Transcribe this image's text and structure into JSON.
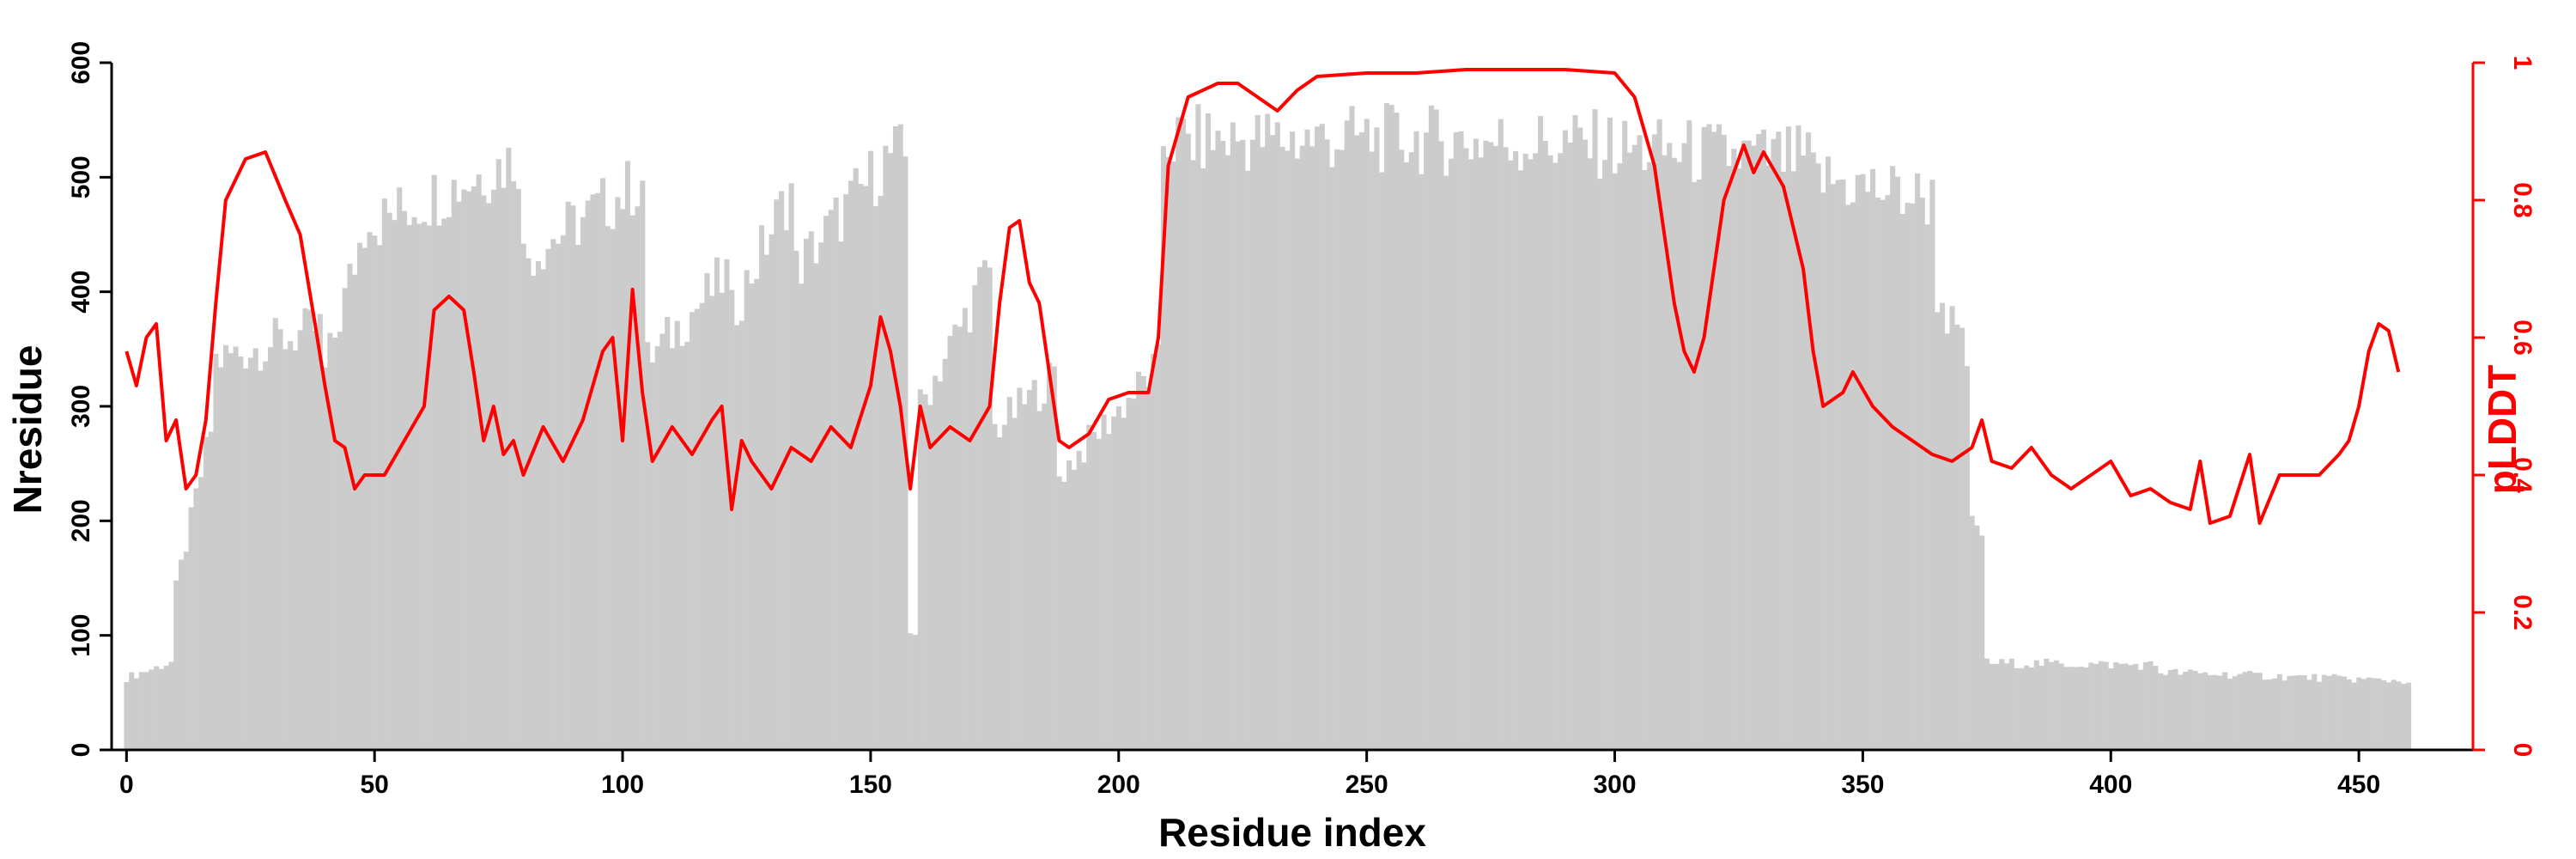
{
  "chart_data": {
    "type": "bar+line",
    "xlabel": "Residue index",
    "ylabel_left": "Nresidue",
    "ylabel_right": "pLDDT",
    "xlim": [
      -3,
      473
    ],
    "ylim_left": [
      0,
      600
    ],
    "ylim_right": [
      0,
      1
    ],
    "x_ticks": [
      "0",
      "50",
      "100",
      "150",
      "200",
      "250",
      "300",
      "350",
      "400",
      "450"
    ],
    "y_ticks_left": [
      "0",
      "100",
      "200",
      "300",
      "400",
      "500",
      "600"
    ],
    "y_ticks_right": [
      "0",
      "0.2",
      "0.4",
      "0.6",
      "0.8",
      "1"
    ],
    "colors": {
      "bars": "#cccccc",
      "line": "#ff0000",
      "axis_left": "#000000",
      "axis_right": "#ff0000"
    },
    "bar_series": {
      "name": "Nresidue",
      "segments": [
        {
          "x": [
            0,
            10
          ],
          "y": [
            63,
            78
          ]
        },
        {
          "x": [
            10,
            18
          ],
          "y": [
            140,
            300
          ]
        },
        {
          "x": [
            18,
            40
          ],
          "y": [
            340,
            370
          ]
        },
        {
          "x": [
            40,
            50
          ],
          "y": [
            330,
            490
          ]
        },
        {
          "x": [
            50,
            80
          ],
          "y": [
            460,
            520
          ]
        },
        {
          "x": [
            80,
            105
          ],
          "y": [
            430,
            500
          ]
        },
        {
          "x": [
            105,
            122
          ],
          "y": [
            340,
            420
          ]
        },
        {
          "x": [
            122,
            135
          ],
          "y": [
            380,
            500
          ]
        },
        {
          "x": [
            135,
            155
          ],
          "y": [
            420,
            525
          ]
        },
        {
          "x": [
            155,
            158
          ],
          "y": [
            520,
            515
          ]
        },
        {
          "x": [
            158,
            160
          ],
          "y": [
            105,
            100
          ]
        },
        {
          "x": [
            160,
            175
          ],
          "y": [
            300,
            430
          ]
        },
        {
          "x": [
            175,
            188
          ],
          "y": [
            280,
            330
          ]
        },
        {
          "x": [
            188,
            209
          ],
          "y": [
            240,
            340
          ]
        },
        {
          "x": [
            209,
            250
          ],
          "y": [
            532,
            534
          ]
        },
        {
          "x": [
            250,
            300
          ],
          "y": [
            534,
            528
          ]
        },
        {
          "x": [
            300,
            340
          ],
          "y": [
            525,
            515
          ]
        },
        {
          "x": [
            340,
            365
          ],
          "y": [
            500,
            480
          ]
        },
        {
          "x": [
            365,
            372
          ],
          "y": [
            400,
            330
          ]
        },
        {
          "x": [
            372,
            375
          ],
          "y": [
            195,
            190
          ]
        },
        {
          "x": [
            375,
            410
          ],
          "y": [
            76,
            74
          ]
        },
        {
          "x": [
            410,
            461
          ],
          "y": [
            68,
            60
          ]
        }
      ]
    },
    "line_series": {
      "name": "pLDDT",
      "points": [
        [
          0,
          0.58
        ],
        [
          2,
          0.53
        ],
        [
          4,
          0.6
        ],
        [
          6,
          0.62
        ],
        [
          8,
          0.45
        ],
        [
          10,
          0.48
        ],
        [
          12,
          0.38
        ],
        [
          14,
          0.4
        ],
        [
          16,
          0.48
        ],
        [
          18,
          0.65
        ],
        [
          20,
          0.8
        ],
        [
          24,
          0.86
        ],
        [
          28,
          0.87
        ],
        [
          32,
          0.8
        ],
        [
          35,
          0.75
        ],
        [
          38,
          0.62
        ],
        [
          40,
          0.53
        ],
        [
          42,
          0.45
        ],
        [
          44,
          0.44
        ],
        [
          46,
          0.38
        ],
        [
          48,
          0.4
        ],
        [
          52,
          0.4
        ],
        [
          56,
          0.45
        ],
        [
          60,
          0.5
        ],
        [
          62,
          0.64
        ],
        [
          65,
          0.66
        ],
        [
          68,
          0.64
        ],
        [
          70,
          0.55
        ],
        [
          72,
          0.45
        ],
        [
          74,
          0.5
        ],
        [
          76,
          0.43
        ],
        [
          78,
          0.45
        ],
        [
          80,
          0.4
        ],
        [
          84,
          0.47
        ],
        [
          88,
          0.42
        ],
        [
          92,
          0.48
        ],
        [
          96,
          0.58
        ],
        [
          98,
          0.6
        ],
        [
          100,
          0.45
        ],
        [
          102,
          0.67
        ],
        [
          104,
          0.52
        ],
        [
          106,
          0.42
        ],
        [
          110,
          0.47
        ],
        [
          114,
          0.43
        ],
        [
          118,
          0.48
        ],
        [
          120,
          0.5
        ],
        [
          122,
          0.35
        ],
        [
          124,
          0.45
        ],
        [
          126,
          0.42
        ],
        [
          130,
          0.38
        ],
        [
          134,
          0.44
        ],
        [
          138,
          0.42
        ],
        [
          142,
          0.47
        ],
        [
          146,
          0.44
        ],
        [
          150,
          0.53
        ],
        [
          152,
          0.63
        ],
        [
          154,
          0.58
        ],
        [
          156,
          0.5
        ],
        [
          158,
          0.38
        ],
        [
          160,
          0.5
        ],
        [
          162,
          0.44
        ],
        [
          166,
          0.47
        ],
        [
          170,
          0.45
        ],
        [
          174,
          0.5
        ],
        [
          176,
          0.65
        ],
        [
          178,
          0.76
        ],
        [
          180,
          0.77
        ],
        [
          182,
          0.68
        ],
        [
          184,
          0.65
        ],
        [
          186,
          0.55
        ],
        [
          188,
          0.45
        ],
        [
          190,
          0.44
        ],
        [
          194,
          0.46
        ],
        [
          198,
          0.51
        ],
        [
          202,
          0.52
        ],
        [
          206,
          0.52
        ],
        [
          208,
          0.6
        ],
        [
          210,
          0.85
        ],
        [
          214,
          0.95
        ],
        [
          220,
          0.97
        ],
        [
          224,
          0.97
        ],
        [
          228,
          0.95
        ],
        [
          232,
          0.93
        ],
        [
          236,
          0.96
        ],
        [
          240,
          0.98
        ],
        [
          250,
          0.985
        ],
        [
          260,
          0.985
        ],
        [
          270,
          0.99
        ],
        [
          280,
          0.99
        ],
        [
          290,
          0.99
        ],
        [
          300,
          0.985
        ],
        [
          304,
          0.95
        ],
        [
          308,
          0.85
        ],
        [
          310,
          0.75
        ],
        [
          312,
          0.65
        ],
        [
          314,
          0.58
        ],
        [
          316,
          0.55
        ],
        [
          318,
          0.6
        ],
        [
          320,
          0.7
        ],
        [
          322,
          0.8
        ],
        [
          326,
          0.88
        ],
        [
          328,
          0.84
        ],
        [
          330,
          0.87
        ],
        [
          334,
          0.82
        ],
        [
          338,
          0.7
        ],
        [
          340,
          0.58
        ],
        [
          342,
          0.5
        ],
        [
          346,
          0.52
        ],
        [
          348,
          0.55
        ],
        [
          352,
          0.5
        ],
        [
          356,
          0.47
        ],
        [
          360,
          0.45
        ],
        [
          364,
          0.43
        ],
        [
          368,
          0.42
        ],
        [
          372,
          0.44
        ],
        [
          374,
          0.48
        ],
        [
          376,
          0.42
        ],
        [
          380,
          0.41
        ],
        [
          384,
          0.44
        ],
        [
          388,
          0.4
        ],
        [
          392,
          0.38
        ],
        [
          396,
          0.4
        ],
        [
          400,
          0.42
        ],
        [
          404,
          0.37
        ],
        [
          408,
          0.38
        ],
        [
          412,
          0.36
        ],
        [
          416,
          0.35
        ],
        [
          418,
          0.42
        ],
        [
          420,
          0.33
        ],
        [
          424,
          0.34
        ],
        [
          428,
          0.43
        ],
        [
          430,
          0.33
        ],
        [
          434,
          0.4
        ],
        [
          438,
          0.4
        ],
        [
          442,
          0.4
        ],
        [
          446,
          0.43
        ],
        [
          448,
          0.45
        ],
        [
          450,
          0.5
        ],
        [
          452,
          0.58
        ],
        [
          454,
          0.62
        ],
        [
          456,
          0.61
        ],
        [
          458,
          0.55
        ]
      ]
    }
  }
}
